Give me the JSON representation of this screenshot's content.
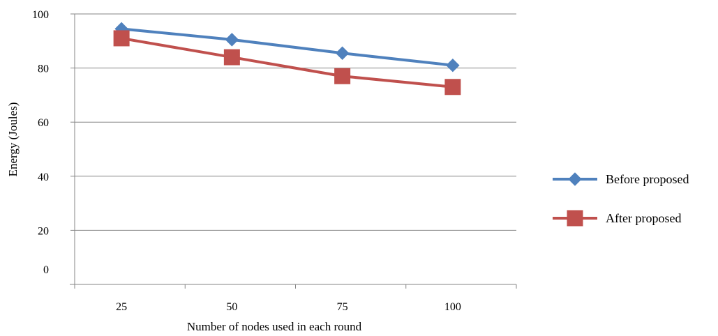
{
  "chart_data": {
    "type": "line",
    "title": "",
    "xlabel": "Number of nodes used in each round",
    "ylabel": "Energy (Joules)",
    "categories": [
      "25",
      "50",
      "75",
      "100"
    ],
    "ylim": [
      0,
      100
    ],
    "yticks": [
      "0",
      "20",
      "40",
      "60",
      "80",
      "100"
    ],
    "grid": "horizontal",
    "legend_position": "right",
    "series": [
      {
        "name": "Before proposed",
        "values": [
          94.5,
          90.5,
          85.5,
          81
        ],
        "color": "#4f81bd",
        "marker": "diamond"
      },
      {
        "name": "After proposed",
        "values": [
          91,
          84,
          77,
          73
        ],
        "color": "#c0504d",
        "marker": "square"
      }
    ]
  }
}
